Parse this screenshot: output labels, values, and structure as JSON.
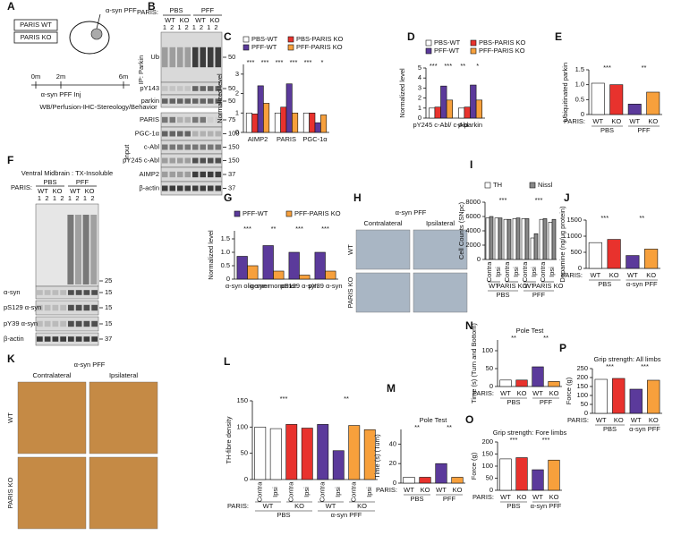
{
  "panel_letters": [
    "A",
    "B",
    "C",
    "D",
    "E",
    "F",
    "G",
    "H",
    "I",
    "J",
    "K",
    "L",
    "M",
    "N",
    "O",
    "P"
  ],
  "panel_a": {
    "groups": [
      "PARIS WT",
      "PARIS KO"
    ],
    "pff": "α-syn PFF",
    "times": [
      "0m",
      "2m",
      "6m"
    ],
    "inj": "α-syn PFF Inj",
    "end": "WB/Perfusion-IHC-Stereology/Behavior"
  },
  "panel_b": {
    "paris": "PARIS:",
    "conds": [
      "PBS",
      "PFF"
    ],
    "geno": [
      "WT",
      "KO",
      "WT",
      "KO"
    ],
    "reps": [
      "1",
      "2",
      "1",
      "2",
      "1",
      "2",
      "1",
      "2"
    ],
    "ip": "IP: Parkin",
    "input": "Input",
    "rows": [
      "Ub",
      "pY143",
      "parkin",
      "PARIS",
      "PGC-1α",
      "c-Abl",
      "pY245 c-Abl",
      "AIMP2",
      "β-actin"
    ],
    "mw": [
      "50",
      "50",
      "50",
      "75",
      "100",
      "150",
      "150",
      "37",
      "37"
    ]
  },
  "panel_f": {
    "title": "Ventral Midbrain : TX-Insoluble",
    "paris": "PARIS:",
    "conds": [
      "PBS",
      "PFF"
    ],
    "geno": [
      "WT",
      "KO",
      "WT",
      "KO"
    ],
    "reps": [
      "1",
      "2",
      "1",
      "2",
      "1",
      "2",
      "1",
      "2"
    ],
    "rows": [
      "α-syn",
      "pS129 α-syn",
      "pY39 α-syn",
      "β-actin"
    ],
    "mw": [
      "25",
      "15",
      "15",
      "15",
      "37"
    ]
  },
  "panel_h": {
    "title": "α-syn PFF",
    "cols": [
      "Contralateral",
      "Ipsilateral"
    ],
    "rows": [
      "WT",
      "PARIS KO"
    ]
  },
  "panel_k": {
    "title": "α-syn PFF",
    "cols": [
      "Contralateral",
      "Ipsilateral"
    ],
    "rows": [
      "WT",
      "PARIS KO"
    ]
  },
  "chart_data": [
    {
      "type": "bar",
      "ylabel": "Normalized level",
      "categories": [
        "AIMP2",
        "PARIS",
        "PGC-1α"
      ],
      "series": [
        {
          "name": "PBS-WT",
          "color": "#ffffff",
          "values": [
            1,
            1,
            1
          ]
        },
        {
          "name": "PBS-PARIS KO",
          "color": "#e8322d",
          "values": [
            0.95,
            1.3,
            1.0
          ]
        },
        {
          "name": "PFF-WT",
          "color": "#5b3a9b",
          "values": [
            2.4,
            2.5,
            0.5
          ]
        },
        {
          "name": "PFF-PARIS KO",
          "color": "#f7a03c",
          "values": [
            1.5,
            1.0,
            0.9
          ]
        }
      ],
      "ylim": [
        0,
        3.5
      ],
      "yticks": [
        0,
        1,
        2,
        3
      ],
      "annotations": [
        "***",
        "***",
        "***",
        "***",
        "***",
        "*"
      ]
    },
    {
      "type": "bar",
      "ylabel": "Normalized level",
      "categories": [
        "pY245 c-Abl/ c-Abl",
        "p-parkin"
      ],
      "series": [
        {
          "name": "PBS-WT",
          "color": "#ffffff",
          "values": [
            1,
            1
          ]
        },
        {
          "name": "PBS-PARIS KO",
          "color": "#e8322d",
          "values": [
            1.1,
            1.1
          ]
        },
        {
          "name": "PFF-WT",
          "color": "#5b3a9b",
          "values": [
            3.2,
            3.3
          ]
        },
        {
          "name": "PFF-PARIS KO",
          "color": "#f7a03c",
          "values": [
            1.8,
            1.8
          ]
        }
      ],
      "ylim": [
        0,
        5
      ],
      "yticks": [
        0,
        1,
        2,
        3,
        4,
        5
      ],
      "annotations": [
        "***",
        "***",
        "**",
        "*"
      ]
    },
    {
      "type": "bar",
      "ylabel": "Ubiquitinated parkin",
      "categories": [
        "WT",
        "KO",
        "WT",
        "KO"
      ],
      "groups": [
        "PBS",
        "PFF"
      ],
      "row_label": "PARIS:",
      "values": [
        1.05,
        1.0,
        0.35,
        0.75
      ],
      "colors": [
        "#ffffff",
        "#e8322d",
        "#5b3a9b",
        "#f7a03c"
      ],
      "ylim": [
        0,
        1.5
      ],
      "yticks": [
        0,
        0.5,
        {
          "value": 1,
          "label": "1.0"
        },
        1.5
      ],
      "annotations": [
        "***",
        "**"
      ]
    },
    {
      "type": "bar",
      "ylabel": "Normalized level",
      "categories": [
        "α-syn oligomer",
        "α-syn monomer",
        "pS129 α-syn",
        "pY39 α-syn"
      ],
      "series": [
        {
          "name": "PFF-WT",
          "color": "#5b3a9b",
          "values": [
            0.85,
            1.25,
            1.0,
            1.0
          ]
        },
        {
          "name": "PFF-PARIS KO",
          "color": "#f7a03c",
          "values": [
            0.5,
            0.3,
            0.15,
            0.3
          ]
        }
      ],
      "ylim": [
        0,
        1.8
      ],
      "yticks": [
        0,
        0.5,
        {
          "value": 1,
          "label": "1.0"
        },
        1.5
      ],
      "annotations": [
        "***",
        "**",
        "***",
        "***"
      ]
    },
    {
      "type": "bar",
      "ylabel": "Cell Counts (SNpc)",
      "categories": [
        "Contra",
        "Ipsi",
        "Contra",
        "Ipsi",
        "Contra",
        "Ipsi",
        "Contra",
        "Ipsi"
      ],
      "geno": [
        "WT",
        "PARIS KO",
        "WT",
        "PARIS KO"
      ],
      "groups": [
        "PBS",
        "PFF"
      ],
      "series": [
        {
          "name": "TH",
          "color": "#ffffff",
          "values": [
            5800,
            5800,
            5600,
            5700,
            5700,
            3000,
            5600,
            5200
          ]
        },
        {
          "name": "Nissl",
          "color": "#888888",
          "values": [
            6000,
            5800,
            5600,
            5800,
            5700,
            3600,
            5700,
            5600
          ]
        }
      ],
      "ylim": [
        0,
        8000
      ],
      "yticks": [
        0,
        2000,
        4000,
        6000,
        8000
      ],
      "annotations": [
        "***",
        "***"
      ]
    },
    {
      "type": "bar",
      "ylabel": "Dopamine (ng/μg protein)",
      "categories": [
        "WT",
        "KO",
        "WT",
        "KO"
      ],
      "groups": [
        "PBS",
        "α-syn PFF"
      ],
      "row_label": "PARIS:",
      "values": [
        800,
        900,
        400,
        600
      ],
      "colors": [
        "#ffffff",
        "#e8322d",
        "#5b3a9b",
        "#f7a03c"
      ],
      "ylim": [
        0,
        1500
      ],
      "yticks": [
        0,
        500,
        1000,
        1500
      ],
      "annotations": [
        "***",
        "**"
      ]
    },
    {
      "type": "bar",
      "ylabel": "TH-fibre density",
      "categories": [
        "Contra",
        "Ipsi",
        "Contra",
        "Ipsi",
        "Contra",
        "Ipsi",
        "Contra",
        "Ipsi"
      ],
      "geno": [
        "WT",
        "KO",
        "WT",
        "KO"
      ],
      "groups": [
        "PBS",
        "α-syn PFF"
      ],
      "row_label": "PARIS:",
      "values": [
        100,
        97,
        105,
        98,
        105,
        55,
        103,
        95
      ],
      "colors": [
        "#ffffff",
        "#ffffff",
        "#e8322d",
        "#e8322d",
        "#5b3a9b",
        "#5b3a9b",
        "#f7a03c",
        "#f7a03c"
      ],
      "ylim": [
        0,
        150
      ],
      "yticks": [
        0,
        50,
        100,
        150
      ],
      "annotations": [
        "***",
        "**"
      ]
    },
    {
      "type": "bar",
      "title": "Pole Test",
      "ylabel": "Time (s) (Turn)",
      "categories": [
        "WT",
        "KO",
        "WT",
        "KO"
      ],
      "groups": [
        "PBS",
        "PFF"
      ],
      "row_label": "PARIS:",
      "values": [
        6,
        6,
        20,
        6
      ],
      "colors": [
        "#ffffff",
        "#e8322d",
        "#5b3a9b",
        "#f7a03c"
      ],
      "ylim": [
        0,
        55
      ],
      "yticks": [
        0,
        20,
        40
      ],
      "annotations": [
        "**",
        "**"
      ]
    },
    {
      "type": "bar",
      "title": "Pole Test",
      "ylabel": "Time (s) (Turn and Bottom)",
      "categories": [
        "WT",
        "KO",
        "WT",
        "KO"
      ],
      "groups": [
        "PBS",
        "PFF"
      ],
      "row_label": "PARIS:",
      "values": [
        18,
        18,
        55,
        14
      ],
      "colors": [
        "#ffffff",
        "#e8322d",
        "#5b3a9b",
        "#f7a03c"
      ],
      "ylim": [
        0,
        130
      ],
      "yticks": [
        0,
        50,
        100
      ],
      "annotations": [
        "**",
        "**"
      ]
    },
    {
      "type": "bar",
      "title": "Grip strength: Fore limbs",
      "ylabel": "Force (g)",
      "categories": [
        "WT",
        "KO",
        "WT",
        "KO"
      ],
      "groups": [
        "PBS",
        "α-syn PFF"
      ],
      "row_label": "PARIS:",
      "values": [
        130,
        135,
        85,
        125
      ],
      "colors": [
        "#ffffff",
        "#e8322d",
        "#5b3a9b",
        "#f7a03c"
      ],
      "ylim": [
        0,
        200
      ],
      "yticks": [
        0,
        50,
        100,
        150,
        200
      ],
      "annotations": [
        "***",
        "***"
      ]
    },
    {
      "type": "bar",
      "title": "Grip strength: All limbs",
      "ylabel": "Force (g)",
      "categories": [
        "WT",
        "KO",
        "WT",
        "KO"
      ],
      "groups": [
        "PBS",
        "α-syn PFF"
      ],
      "row_label": "PARIS:",
      "values": [
        190,
        195,
        135,
        185
      ],
      "colors": [
        "#ffffff",
        "#e8322d",
        "#5b3a9b",
        "#f7a03c"
      ],
      "ylim": [
        0,
        250
      ],
      "yticks": [
        0,
        50,
        100,
        150,
        200,
        250
      ],
      "annotations": [
        "***",
        "***"
      ]
    }
  ]
}
